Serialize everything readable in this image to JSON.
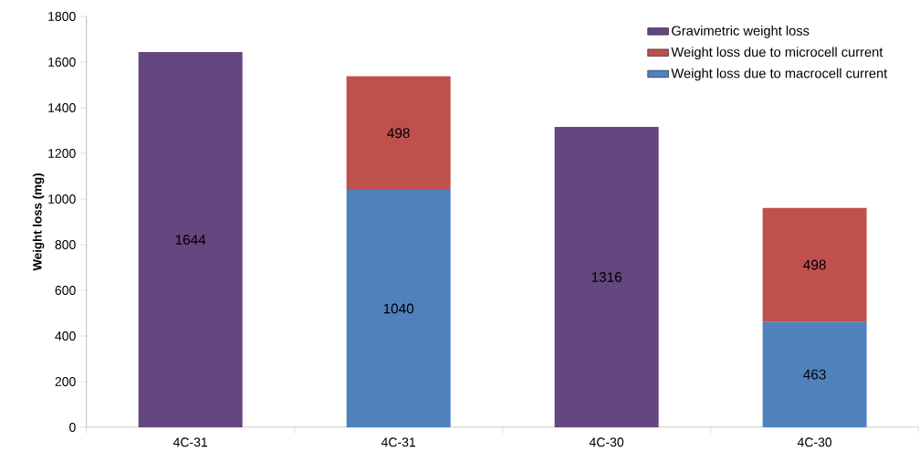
{
  "chart_data": {
    "type": "bar",
    "stacked": true,
    "ylabel": "Weight loss (mg)",
    "categories": [
      "4C-31",
      "4C-31",
      "4C-30",
      "4C-30"
    ],
    "series": [
      {
        "name": "Weight loss due to macrocell current",
        "color": "#4f81bd",
        "values": [
          null,
          1040,
          null,
          463
        ]
      },
      {
        "name": "Weight loss due to microcell current",
        "color": "#c0504d",
        "values": [
          null,
          498,
          null,
          498
        ]
      },
      {
        "name": "Gravimetric weight loss",
        "color": "#65467f",
        "values": [
          1644,
          null,
          1316,
          null
        ]
      }
    ],
    "ylim": [
      0,
      1800
    ],
    "yticks": [
      0,
      200,
      400,
      600,
      800,
      1000,
      1200,
      1400,
      1600,
      1800
    ],
    "data_labels": true,
    "legend": "top right",
    "grid": false
  }
}
